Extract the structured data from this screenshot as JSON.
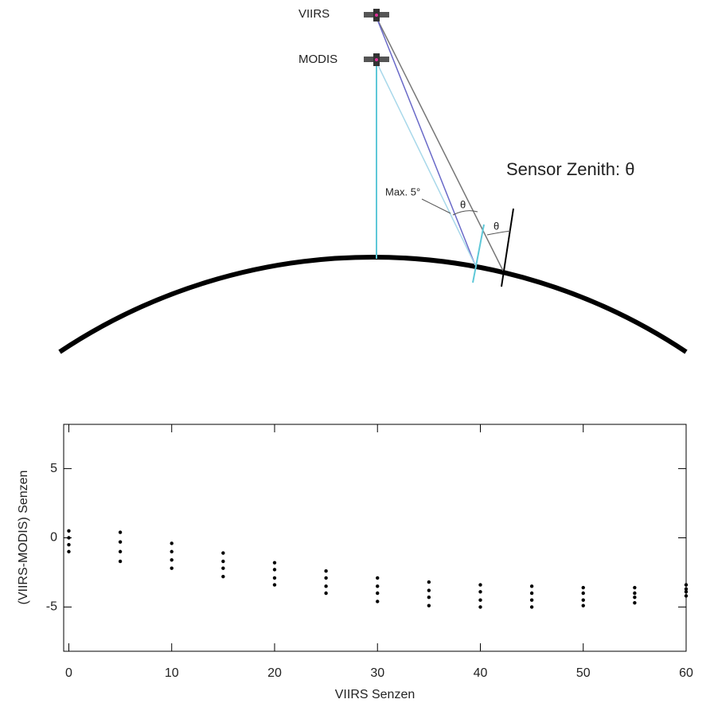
{
  "diagram": {
    "satellites": [
      "VIIRS",
      "MODIS"
    ],
    "caption": "Sensor Zenith: θ",
    "max_label": "Max. 5°",
    "angle_labels": [
      "θ",
      "θ"
    ]
  },
  "chart_data": {
    "type": "scatter",
    "x_label": "VIIRS Senzen",
    "y_label": "(VIIRS-MODIS) Senzen",
    "xlim": [
      -0.5,
      60
    ],
    "ylim": [
      -8.2,
      8.2
    ],
    "xticks": [
      0,
      10,
      20,
      30,
      40,
      50,
      60
    ],
    "yticks": [
      -5,
      0,
      5
    ],
    "series": [
      {
        "color": "#000000",
        "x": [
          0,
          5,
          10,
          15,
          20,
          25,
          30,
          35,
          40,
          45,
          50,
          55,
          60,
          0,
          5,
          10,
          15,
          20,
          25,
          30,
          35,
          40,
          45,
          50,
          55,
          60,
          0,
          5,
          10,
          15,
          20,
          25,
          30,
          35,
          40,
          45,
          50,
          55,
          60,
          0,
          5,
          10,
          15,
          20,
          25,
          30,
          35,
          40,
          45,
          50,
          55,
          60
        ],
        "values": [
          0.5,
          0.4,
          -0.4,
          -1.1,
          -1.8,
          -2.4,
          -2.9,
          -3.2,
          -3.4,
          -3.5,
          -3.6,
          -3.6,
          -3.4,
          0.0,
          -0.3,
          -1.0,
          -1.7,
          -2.3,
          -2.9,
          -3.5,
          -3.8,
          -3.9,
          -4.0,
          -4.0,
          -4.0,
          -3.7,
          -0.5,
          -1.0,
          -1.6,
          -2.2,
          -2.9,
          -3.5,
          -4.0,
          -4.3,
          -4.5,
          -4.5,
          -4.5,
          -4.3,
          -3.9,
          -1.0,
          -1.7,
          -2.2,
          -2.8,
          -3.4,
          -4.0,
          -4.6,
          -4.9,
          -5.0,
          -5.0,
          -4.9,
          -4.7,
          -4.2
        ]
      }
    ]
  }
}
